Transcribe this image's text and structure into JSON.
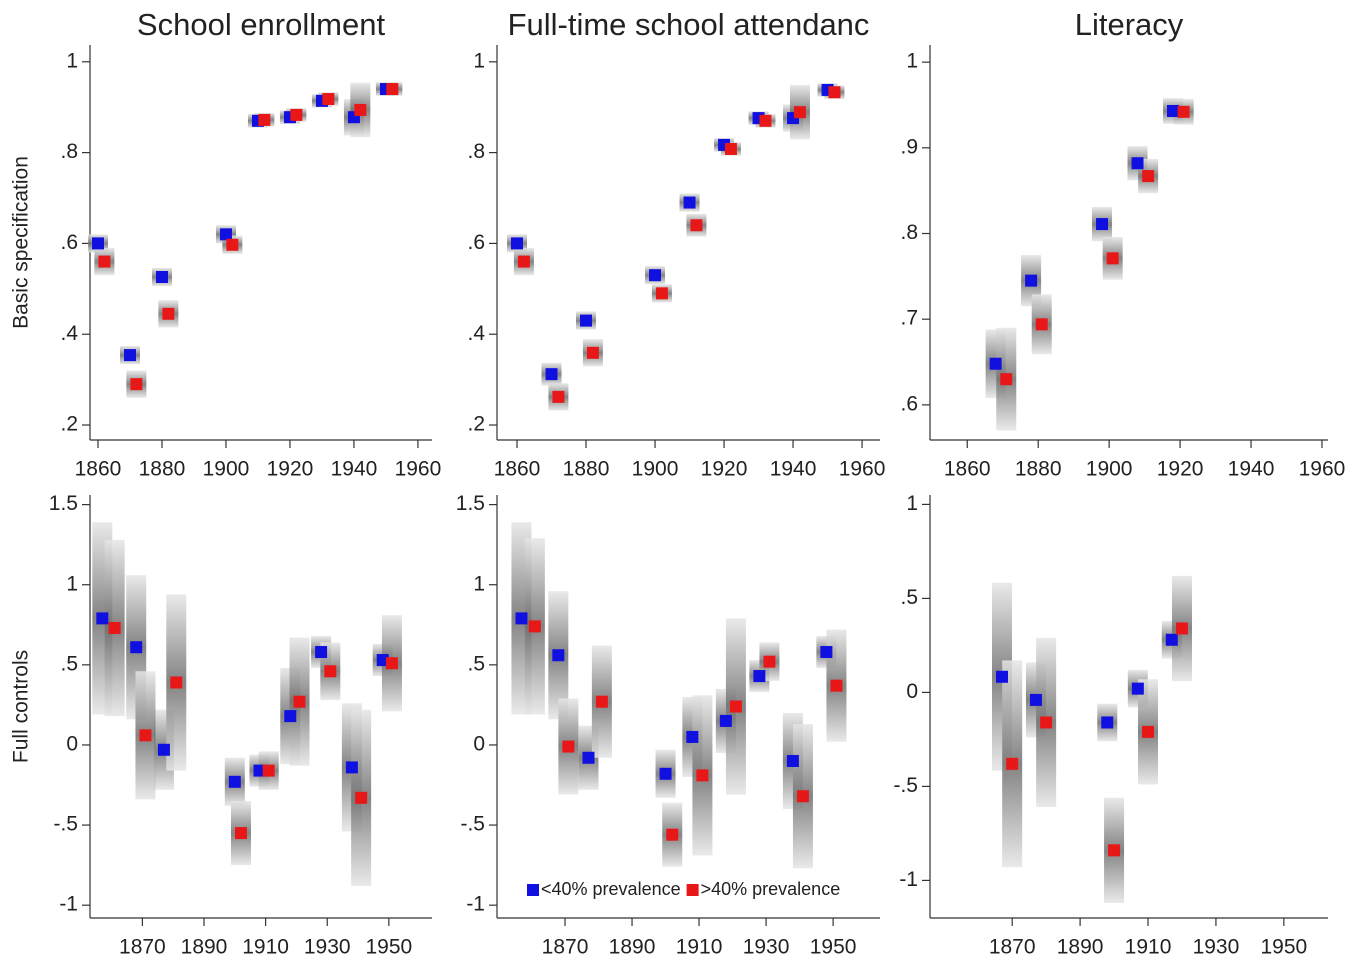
{
  "chart_data": [
    {
      "type": "scatter",
      "title": "School enrollment",
      "ylabel": "Basic specification",
      "xlim": [
        1857.5,
        1964.4
      ],
      "xticks": [
        1860,
        1880,
        1900,
        1920,
        1940,
        1960
      ],
      "ylim": [
        0.167,
        1.037
      ],
      "yticks": [
        {
          "value": 0.2,
          "label": ".2"
        },
        {
          "value": 0.4,
          "label": ".4"
        },
        {
          "value": 0.6,
          "label": ".6"
        },
        {
          "value": 0.8,
          "label": ".8"
        },
        1
      ],
      "series": [
        {
          "color": "#1010e0",
          "x": [
            1860,
            1870,
            1880,
            1900,
            1910,
            1920,
            1930,
            1940,
            1950
          ],
          "values": [
            0.6,
            0.354,
            0.526,
            0.62,
            0.87,
            0.878,
            0.914,
            0.878,
            0.94
          ],
          "errors": [
            0.02,
            0.02,
            0.02,
            0.02,
            0.015,
            0.015,
            0.015,
            0.04,
            0.015
          ]
        },
        {
          "color": "#e81818",
          "x": [
            1862,
            1872,
            1882,
            1902,
            1912,
            1922,
            1932,
            1942,
            1952
          ],
          "values": [
            0.56,
            0.29,
            0.445,
            0.597,
            0.872,
            0.883,
            0.918,
            0.894,
            0.94
          ],
          "errors": [
            0.03,
            0.03,
            0.03,
            0.02,
            0.015,
            0.015,
            0.015,
            0.06,
            0.015
          ]
        }
      ]
    },
    {
      "type": "scatter",
      "title": "Full-time school attendanc",
      "xlim": [
        1854.2,
        1965.2
      ],
      "xticks": [
        1860,
        1880,
        1900,
        1920,
        1940,
        1960
      ],
      "ylim": [
        0.167,
        1.037
      ],
      "yticks": [
        {
          "value": 0.2,
          "label": ".2"
        },
        {
          "value": 0.4,
          "label": ".4"
        },
        {
          "value": 0.6,
          "label": ".6"
        },
        {
          "value": 0.8,
          "label": ".8"
        },
        1
      ],
      "series": [
        {
          "color": "#1010e0",
          "x": [
            1860,
            1870,
            1880,
            1900,
            1910,
            1920,
            1930,
            1940,
            1950
          ],
          "values": [
            0.6,
            0.312,
            0.43,
            0.53,
            0.69,
            0.817,
            0.876,
            0.876,
            0.938
          ],
          "errors": [
            0.02,
            0.025,
            0.02,
            0.02,
            0.02,
            0.015,
            0.015,
            0.03,
            0.015
          ]
        },
        {
          "color": "#e81818",
          "x": [
            1862,
            1872,
            1882,
            1902,
            1912,
            1922,
            1932,
            1942,
            1952
          ],
          "values": [
            0.56,
            0.262,
            0.359,
            0.49,
            0.64,
            0.808,
            0.87,
            0.889,
            0.933
          ],
          "errors": [
            0.03,
            0.03,
            0.03,
            0.02,
            0.025,
            0.015,
            0.015,
            0.06,
            0.015
          ]
        }
      ]
    },
    {
      "type": "scatter",
      "title": "Literacy",
      "xlim": [
        1849.5,
        1961.7
      ],
      "xticks": [
        1860,
        1880,
        1900,
        1920,
        1940,
        1960
      ],
      "ylim": [
        0.559,
        1.02
      ],
      "yticks": [
        {
          "value": 0.6,
          "label": ".6"
        },
        {
          "value": 0.7,
          "label": ".7"
        },
        {
          "value": 0.8,
          "label": ".8"
        },
        {
          "value": 0.9,
          "label": ".9"
        },
        1
      ],
      "series": [
        {
          "color": "#1010e0",
          "x": [
            1868,
            1878,
            1898,
            1908,
            1918
          ],
          "values": [
            0.648,
            0.745,
            0.811,
            0.882,
            0.943
          ],
          "errors": [
            0.04,
            0.03,
            0.02,
            0.02,
            0.015
          ]
        },
        {
          "color": "#e81818",
          "x": [
            1871,
            1881,
            1901,
            1911,
            1921
          ],
          "values": [
            0.63,
            0.694,
            0.771,
            0.867,
            0.942
          ],
          "errors": [
            0.06,
            0.035,
            0.025,
            0.02,
            0.015
          ]
        }
      ]
    },
    {
      "type": "scatter",
      "ylabel": "Full controls",
      "xlim": [
        1853,
        1964
      ],
      "xticks": [
        1870,
        1890,
        1910,
        1930,
        1950
      ],
      "ylim": [
        -1.08,
        1.56
      ],
      "yticks": [
        -1,
        {
          "value": -0.5,
          "label": "-.5"
        },
        0,
        {
          "value": 0.5,
          "label": ".5"
        },
        1,
        1.5
      ],
      "series": [
        {
          "color": "#1010e0",
          "x": [
            1857,
            1868,
            1877,
            1900,
            1908,
            1918,
            1928,
            1938,
            1948
          ],
          "values": [
            0.79,
            0.61,
            -0.03,
            -0.23,
            -0.16,
            0.18,
            0.58,
            -0.14,
            0.53
          ],
          "errors": [
            0.6,
            0.45,
            0.25,
            0.15,
            0.1,
            0.3,
            0.1,
            0.4,
            0.1
          ]
        },
        {
          "color": "#e81818",
          "x": [
            1861,
            1871,
            1881,
            1902,
            1911,
            1921,
            1931,
            1941,
            1951
          ],
          "values": [
            0.73,
            0.06,
            0.39,
            -0.55,
            -0.16,
            0.27,
            0.46,
            -0.33,
            0.51
          ],
          "errors": [
            0.55,
            0.4,
            0.55,
            0.2,
            0.12,
            0.4,
            0.18,
            0.55,
            0.3
          ]
        }
      ]
    },
    {
      "type": "scatter",
      "legend": "lower center",
      "xlim": [
        1849.7,
        1964
      ],
      "xticks": [
        1870,
        1890,
        1910,
        1930,
        1950
      ],
      "ylim": [
        -1.08,
        1.56
      ],
      "yticks": [
        -1,
        {
          "value": -0.5,
          "label": "-.5"
        },
        0,
        {
          "value": 0.5,
          "label": ".5"
        },
        1,
        1.5
      ],
      "series": [
        {
          "name": "<40% prevalence",
          "color": "#1010e0",
          "x": [
            1857,
            1868,
            1877,
            1900,
            1908,
            1918,
            1928,
            1938,
            1948
          ],
          "values": [
            0.79,
            0.56,
            -0.08,
            -0.18,
            0.05,
            0.15,
            0.43,
            -0.1,
            0.58
          ],
          "errors": [
            0.6,
            0.4,
            0.2,
            0.15,
            0.25,
            0.2,
            0.1,
            0.3,
            0.1
          ]
        },
        {
          "name": ">40% prevalence",
          "color": "#e81818",
          "x": [
            1861,
            1871,
            1881,
            1902,
            1911,
            1921,
            1931,
            1941,
            1951
          ],
          "values": [
            0.74,
            -0.01,
            0.27,
            -0.56,
            -0.19,
            0.24,
            0.52,
            -0.32,
            0.37
          ],
          "errors": [
            0.55,
            0.3,
            0.35,
            0.2,
            0.5,
            0.55,
            0.12,
            0.45,
            0.35
          ]
        }
      ]
    },
    {
      "type": "scatter",
      "xlim": [
        1845.8,
        1963
      ],
      "xticks": [
        1870,
        1890,
        1910,
        1930,
        1950
      ],
      "ylim": [
        -1.2,
        1.05
      ],
      "yticks": [
        -1,
        {
          "value": -0.5,
          "label": "-.5"
        },
        0,
        {
          "value": 0.5,
          "label": ".5"
        },
        1
      ],
      "series": [
        {
          "color": "#1010e0",
          "x": [
            1867,
            1877,
            1898,
            1907,
            1917
          ],
          "values": [
            0.083,
            -0.04,
            -0.16,
            0.02,
            0.28
          ],
          "errors": [
            0.5,
            0.2,
            0.1,
            0.1,
            0.1
          ]
        },
        {
          "color": "#e81818",
          "x": [
            1870,
            1880,
            1900,
            1910,
            1920
          ],
          "values": [
            -0.38,
            -0.16,
            -0.84,
            -0.21,
            0.34
          ],
          "errors": [
            0.55,
            0.45,
            0.28,
            0.28,
            0.28
          ]
        }
      ]
    }
  ]
}
